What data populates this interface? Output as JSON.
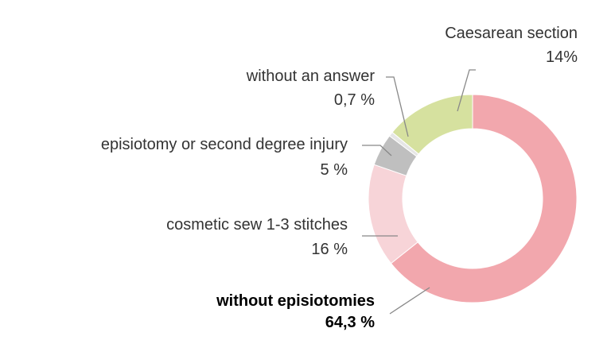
{
  "chart_data": {
    "type": "donut",
    "categories": [
      "without episiotomies",
      "cosmetic sew 1-3 stitches",
      "episiotomy or second degree injury",
      "without an answer",
      "Caesarean section"
    ],
    "values": [
      64.3,
      16,
      5,
      0.7,
      14
    ],
    "value_labels": [
      "64,3 %",
      "16 %",
      "5 %",
      "0,7 %",
      "14%"
    ],
    "colors": [
      "#f2a7ad",
      "#f7d4d8",
      "#bfbfbf",
      "#e6e6e6",
      "#d6e19f"
    ],
    "bold": [
      true,
      false,
      false,
      false,
      false
    ]
  }
}
